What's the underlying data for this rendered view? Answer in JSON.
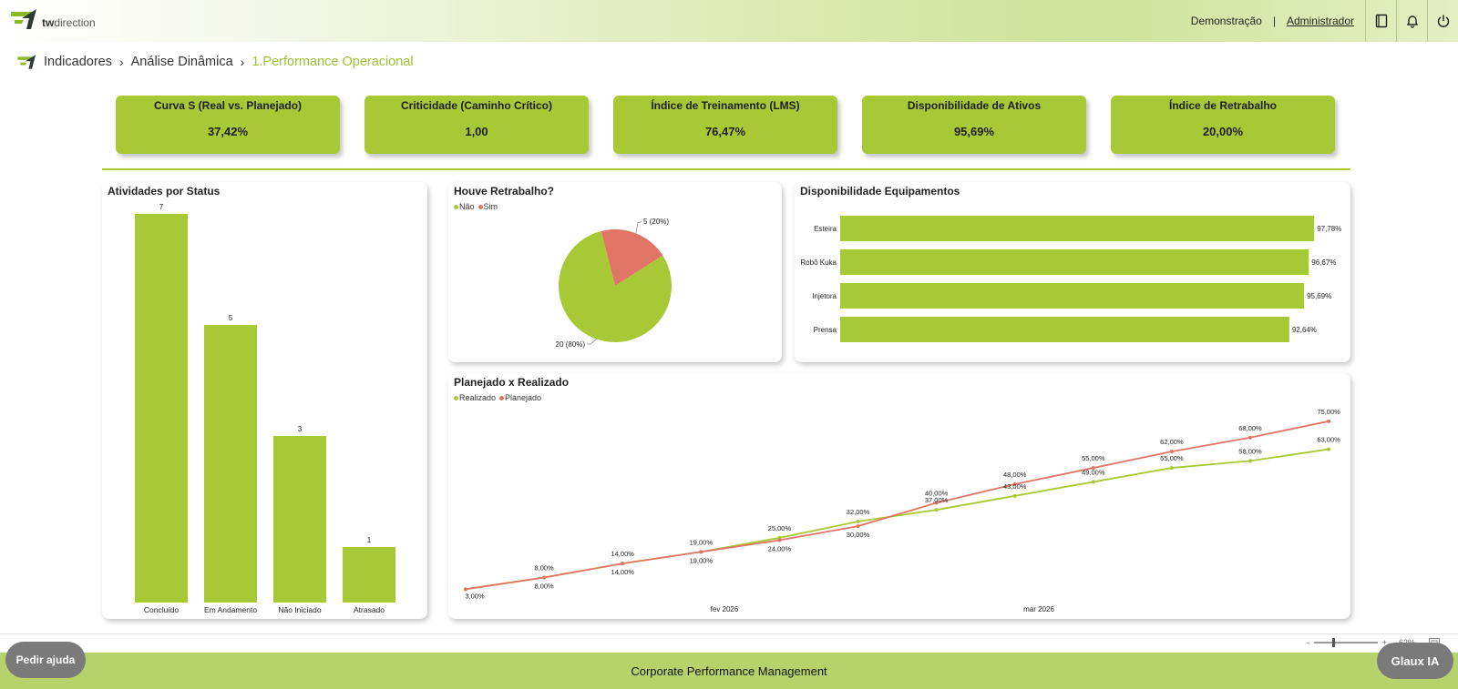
{
  "header": {
    "brand_prefix": "tw",
    "brand_suffix": "direction",
    "environment": "Demonstração",
    "separator": "|",
    "user": "Administrador",
    "icons": [
      "book-icon",
      "bell-icon",
      "power-icon"
    ]
  },
  "breadcrumb": {
    "items": [
      "Indicadores",
      "Análise Dinâmica"
    ],
    "active": "1.Performance Operacional"
  },
  "kpis": [
    {
      "title": "Curva S (Real vs. Planejado)",
      "value": "37,42%"
    },
    {
      "title": "Criticidade (Caminho Crítico)",
      "value": "1,00"
    },
    {
      "title": "Índice de Treinamento (LMS)",
      "value": "76,47%"
    },
    {
      "title": "Disponibilidade de Ativos",
      "value": "95,69%"
    },
    {
      "title": "Índice de Retrabalho",
      "value": "20,00%"
    }
  ],
  "colors": {
    "accent": "#a8c936",
    "red": "#e07565",
    "footer": "#b6d36b"
  },
  "chart_data": [
    {
      "type": "bar",
      "title": "Atividades por Status",
      "categories": [
        "Concluído",
        "Em Andamento",
        "Não Iniciado",
        "Atrasado"
      ],
      "values": [
        7,
        5,
        3,
        1
      ],
      "value_labels": [
        "7",
        "5",
        "3",
        "1"
      ],
      "ylim": [
        0,
        7
      ]
    },
    {
      "type": "pie",
      "title": "Houve Retrabalho?",
      "legend": [
        "Não",
        "Sim"
      ],
      "labels": [
        "Não",
        "Sim"
      ],
      "values": [
        20,
        5
      ],
      "value_labels": [
        "20 (80%)",
        "5 (20%)"
      ]
    },
    {
      "type": "bar",
      "orientation": "horizontal",
      "title": "Disponibilidade Equipamentos",
      "categories": [
        "Esteira",
        "Robô Kuka",
        "Injetora",
        "Prensa"
      ],
      "values": [
        97.78,
        96.67,
        95.69,
        92.64
      ],
      "value_labels": [
        "97,78%",
        "96,67%",
        "95,69%",
        "92,64%"
      ]
    },
    {
      "type": "line",
      "title": "Planejado x Realizado",
      "legend": [
        "Realizado",
        "Planejado"
      ],
      "x_ticks": [
        "fev 2026",
        "mar 2026"
      ],
      "series": [
        {
          "name": "Realizado",
          "values": [
            3,
            8,
            14,
            19,
            25,
            32,
            37,
            43,
            49,
            55,
            58,
            63
          ],
          "labels": [
            "3,00%",
            "8,00%",
            "14,00%",
            "19,00%",
            "25,00%",
            "32,00%",
            "37,00%",
            "43,00%",
            "49,00%",
            "55,00%",
            "58,00%",
            "63,00%"
          ]
        },
        {
          "name": "Planejado",
          "values": [
            3,
            8,
            14,
            19,
            24,
            30,
            40,
            48,
            55,
            62,
            68,
            75
          ],
          "labels": [
            "3,00%",
            "8,00%",
            "14,00%",
            "19,00%",
            "24,00%",
            "30,00%",
            "40,00%",
            "48,00%",
            "55,00%",
            "62,00%",
            "68,00%",
            "75,00%"
          ]
        }
      ],
      "ylim": [
        0,
        80
      ]
    }
  ],
  "zoom": {
    "minus": "-",
    "plus": "+",
    "level": "62%"
  },
  "footer": {
    "label": "Corporate Performance Management"
  },
  "buttons": {
    "help": "Pedir ajuda",
    "glaux": "Glaux IA"
  }
}
